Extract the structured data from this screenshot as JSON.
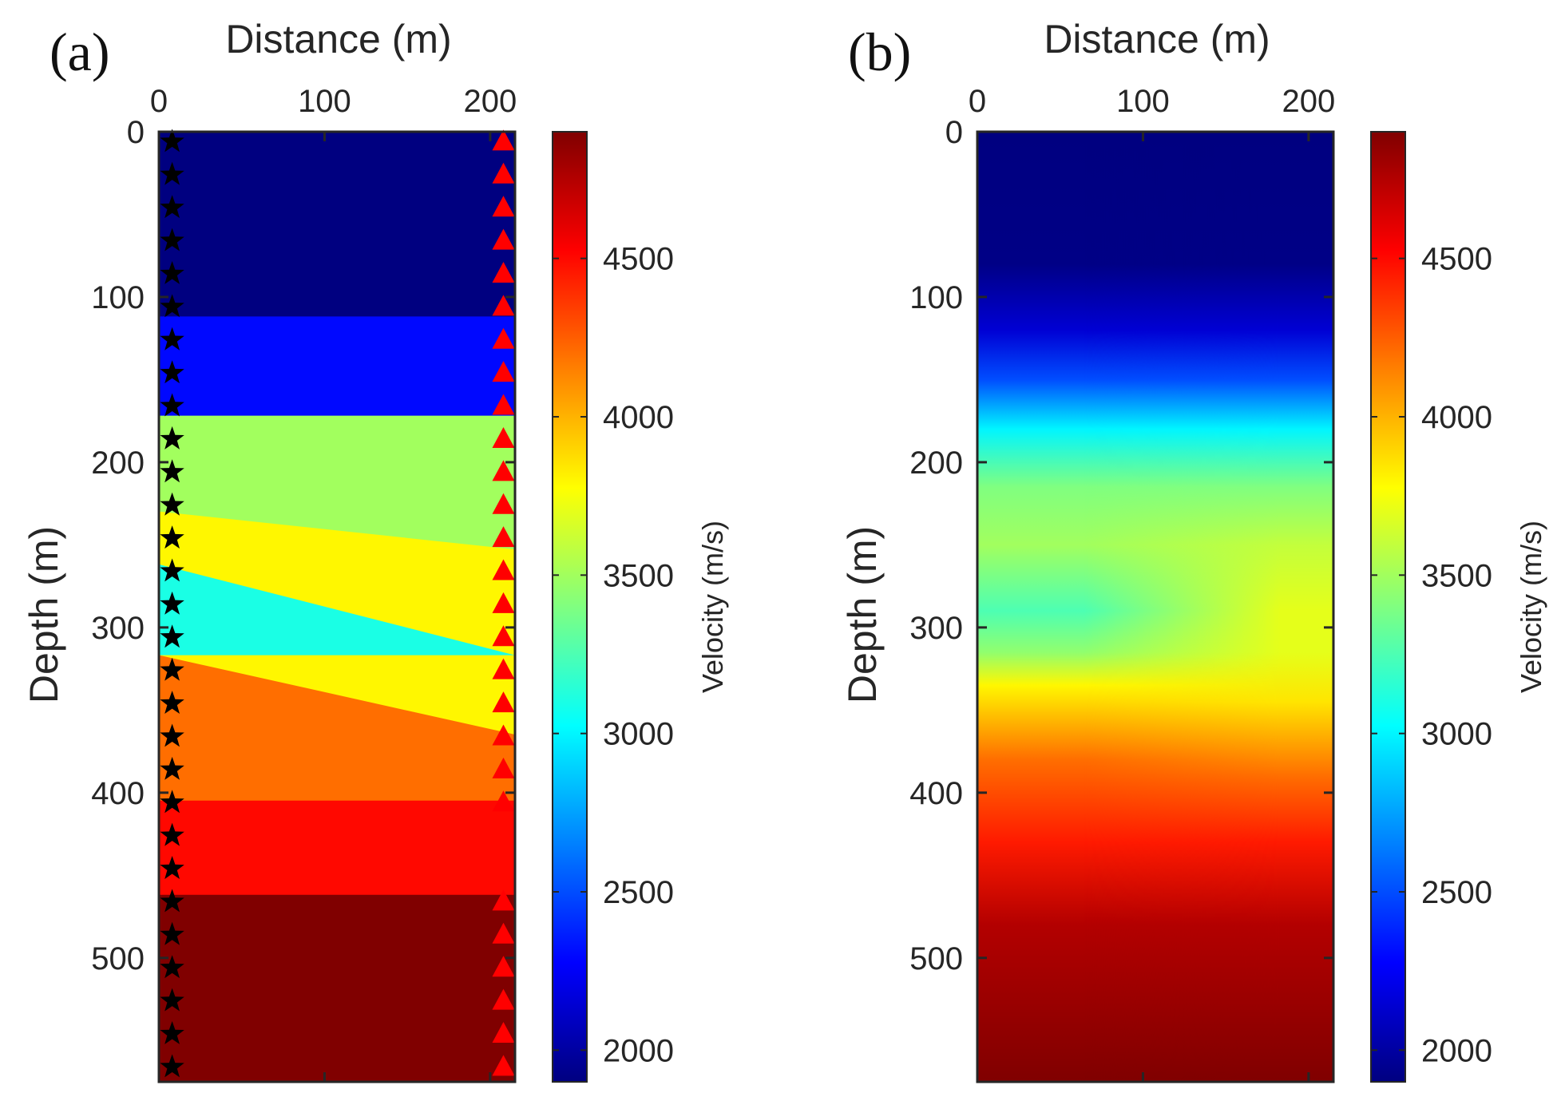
{
  "chart_data": [
    {
      "type": "heatmap",
      "panel_label": "(a)",
      "xlabel": "Distance (m)",
      "ylabel": "Depth (m)",
      "xlim": [
        0,
        215
      ],
      "ylim": [
        0,
        575
      ],
      "xticks": [
        "0",
        "100",
        "200"
      ],
      "xtick_values": [
        0,
        100,
        200
      ],
      "yticks": [
        "0",
        "100",
        "200",
        "300",
        "400",
        "500"
      ],
      "ytick_values": [
        0,
        100,
        200,
        300,
        400,
        500
      ],
      "layers": [
        {
          "name": "layer-1",
          "velocity": 1900,
          "top_left": 0,
          "top_right": 0,
          "bottom_left": 112,
          "bottom_right": 112
        },
        {
          "name": "layer-2",
          "velocity": 2300,
          "top_left": 112,
          "top_right": 112,
          "bottom_left": 172,
          "bottom_right": 172
        },
        {
          "name": "layer-3",
          "velocity": 3500,
          "top_left": 172,
          "top_right": 172,
          "bottom_left": 230,
          "bottom_right": 253
        },
        {
          "name": "layer-4",
          "velocity": 3800,
          "top_left": 230,
          "top_right": 253,
          "bottom_left": 262,
          "bottom_right": 317
        },
        {
          "name": "layer-5",
          "velocity": 3100,
          "top_left": 262,
          "top_right": 317,
          "bottom_left": 317,
          "bottom_right": 317
        },
        {
          "name": "layer-6",
          "velocity": 3800,
          "top_left": 317,
          "top_right": 317,
          "bottom_left": 317,
          "bottom_right": 365
        },
        {
          "name": "layer-7",
          "velocity": 4200,
          "top_left": 317,
          "top_right": 365,
          "bottom_left": 405,
          "bottom_right": 405
        },
        {
          "name": "layer-8",
          "velocity": 4500,
          "top_left": 405,
          "top_right": 405,
          "bottom_left": 462,
          "bottom_right": 462
        },
        {
          "name": "layer-9",
          "velocity": 4900,
          "top_left": 462,
          "top_right": 462,
          "bottom_left": 575,
          "bottom_right": 575
        }
      ],
      "sources": {
        "x": 8,
        "depths": [
          6,
          26,
          46,
          66,
          86,
          106,
          126,
          146,
          166,
          186,
          206,
          226,
          246,
          266,
          286,
          306,
          326,
          346,
          366,
          386,
          406,
          426,
          446,
          466,
          486,
          506,
          526,
          546,
          566
        ],
        "color": "#000000",
        "marker": "star"
      },
      "receivers": {
        "x": 208,
        "depths": [
          6,
          26,
          46,
          66,
          86,
          106,
          126,
          146,
          166,
          186,
          206,
          226,
          246,
          266,
          286,
          306,
          326,
          346,
          366,
          386,
          406,
          466,
          486,
          506,
          526,
          546,
          566
        ],
        "color": "#ff0000",
        "marker": "triangle"
      },
      "colorbar": {
        "label": "Velocity (m/s)",
        "range": [
          1900,
          4900
        ],
        "ticks": [
          "2000",
          "2500",
          "3000",
          "3500",
          "4000",
          "4500"
        ],
        "tick_values": [
          2000,
          2500,
          3000,
          3500,
          4000,
          4500
        ],
        "colormap": "jet"
      }
    },
    {
      "type": "heatmap",
      "panel_label": "(b)",
      "xlabel": "Distance (m)",
      "ylabel": "Depth (m)",
      "xlim": [
        0,
        215
      ],
      "ylim": [
        0,
        575
      ],
      "xticks": [
        "0",
        "100",
        "200"
      ],
      "xtick_values": [
        0,
        100,
        200
      ],
      "yticks": [
        "0",
        "100",
        "200",
        "300",
        "400",
        "500"
      ],
      "ytick_values": [
        0,
        100,
        200,
        300,
        400,
        500
      ],
      "velocity_profile_left": [
        {
          "depth": 0,
          "velocity": 1900
        },
        {
          "depth": 80,
          "velocity": 1920
        },
        {
          "depth": 120,
          "velocity": 2150
        },
        {
          "depth": 150,
          "velocity": 2500
        },
        {
          "depth": 180,
          "velocity": 3000
        },
        {
          "depth": 215,
          "velocity": 3400
        },
        {
          "depth": 250,
          "velocity": 3500
        },
        {
          "depth": 290,
          "velocity": 3250
        },
        {
          "depth": 315,
          "velocity": 3450
        },
        {
          "depth": 335,
          "velocity": 3800
        },
        {
          "depth": 380,
          "velocity": 4200
        },
        {
          "depth": 430,
          "velocity": 4450
        },
        {
          "depth": 480,
          "velocity": 4750
        },
        {
          "depth": 575,
          "velocity": 4900
        }
      ],
      "velocity_profile_right": [
        {
          "depth": 0,
          "velocity": 1900
        },
        {
          "depth": 80,
          "velocity": 1920
        },
        {
          "depth": 120,
          "velocity": 2150
        },
        {
          "depth": 150,
          "velocity": 2500
        },
        {
          "depth": 180,
          "velocity": 3000
        },
        {
          "depth": 215,
          "velocity": 3400
        },
        {
          "depth": 250,
          "velocity": 3600
        },
        {
          "depth": 290,
          "velocity": 3700
        },
        {
          "depth": 315,
          "velocity": 3700
        },
        {
          "depth": 345,
          "velocity": 3850
        },
        {
          "depth": 390,
          "velocity": 4200
        },
        {
          "depth": 430,
          "velocity": 4450
        },
        {
          "depth": 480,
          "velocity": 4750
        },
        {
          "depth": 575,
          "velocity": 4900
        }
      ],
      "colorbar": {
        "label": "Velocity (m/s)",
        "range": [
          1900,
          4900
        ],
        "ticks": [
          "2000",
          "2500",
          "3000",
          "3500",
          "4000",
          "4500"
        ],
        "tick_values": [
          2000,
          2500,
          3000,
          3500,
          4000,
          4500
        ],
        "colormap": "jet"
      }
    }
  ]
}
